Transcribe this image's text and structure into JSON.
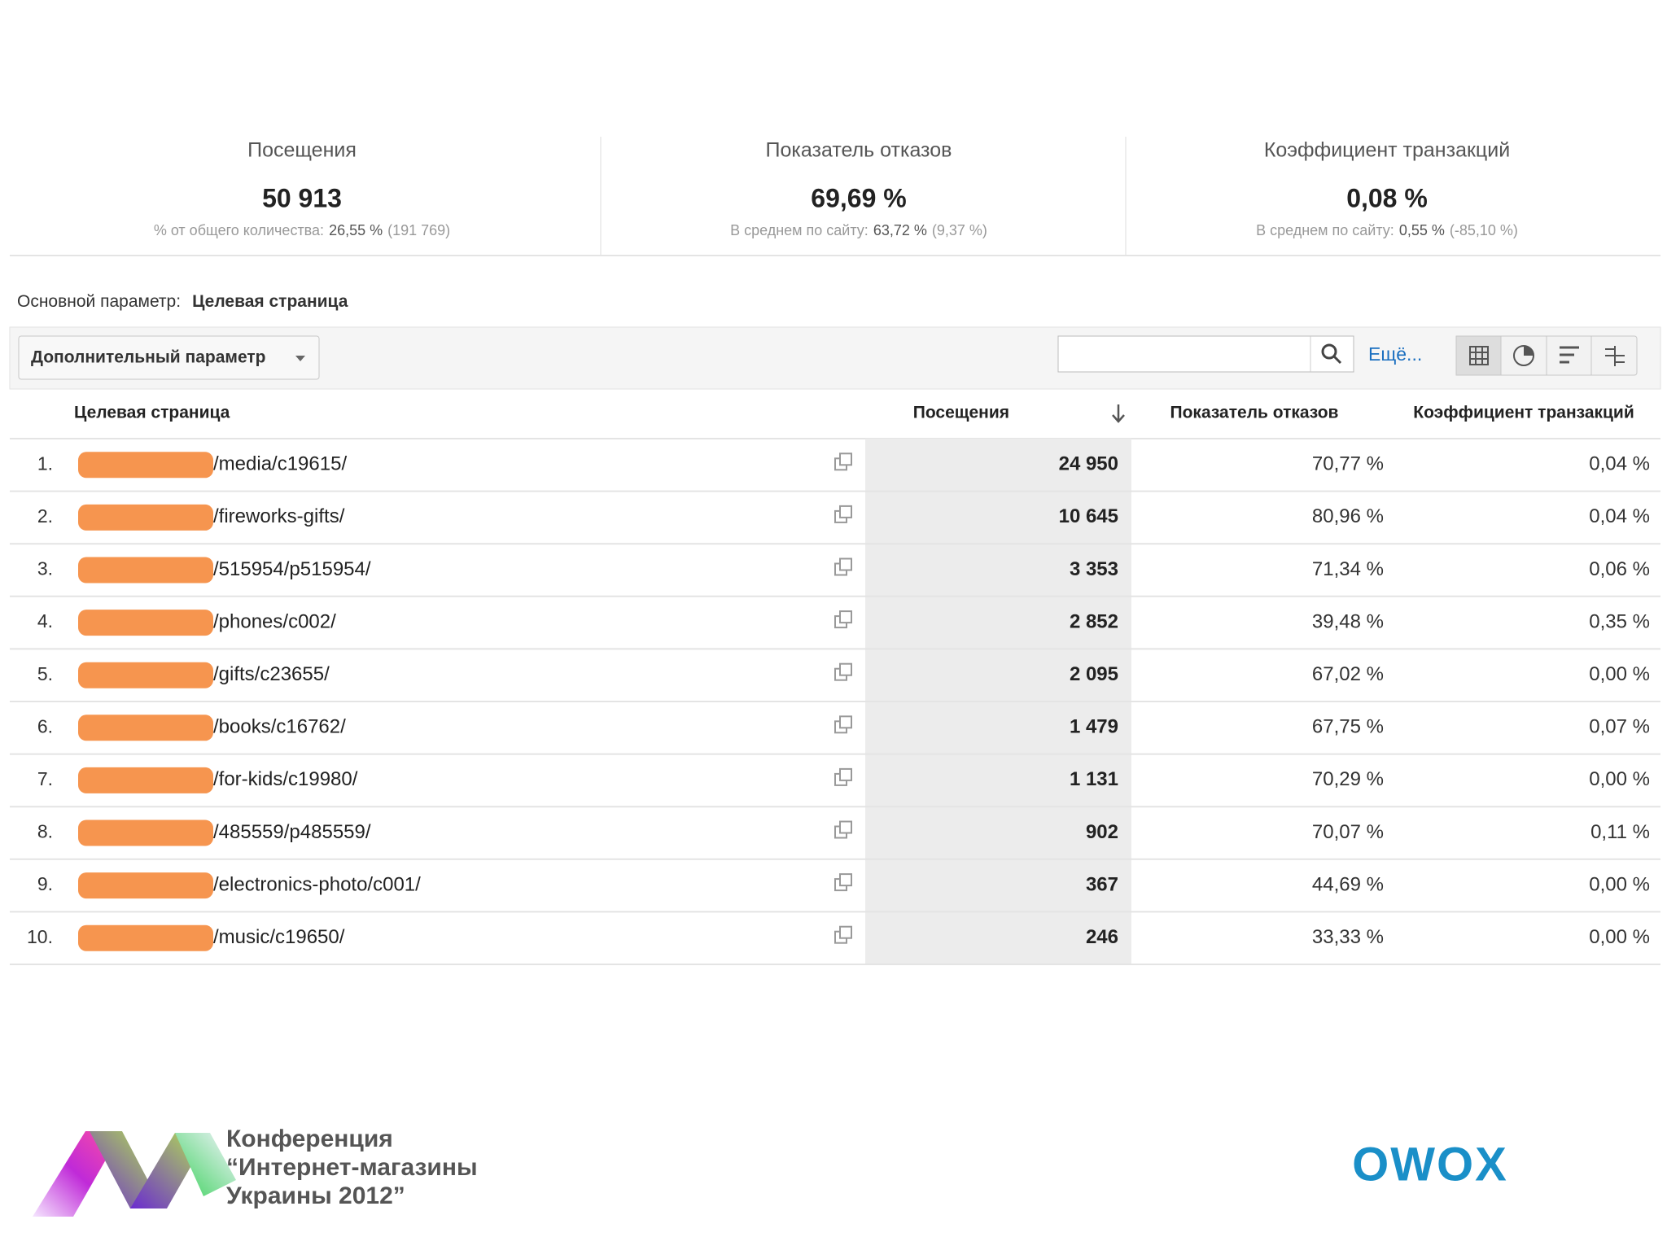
{
  "summary": [
    {
      "label": "Посещения",
      "value": "50 913",
      "sub_label": "% от общего количества:",
      "sub_value": "26,55 %",
      "sub_extra": "(191 769)"
    },
    {
      "label": "Показатель отказов",
      "value": "69,69 %",
      "sub_label": "В среднем по сайту:",
      "sub_value": "63,72 %",
      "sub_extra": "(9,37 %)"
    },
    {
      "label": "Коэффициент транзакций",
      "value": "0,08 %",
      "sub_label": "В среднем по сайту:",
      "sub_value": "0,55 %",
      "sub_extra": "(-85,10 %)"
    }
  ],
  "primary": {
    "label": "Основной параметр:",
    "value": "Целевая страница"
  },
  "secondary_button": "Дополнительный параметр",
  "more_link": "Ещё...",
  "table": {
    "headers": [
      "Целевая страница",
      "Посещения",
      "Показатель отказов",
      "Коэффициент транзакций"
    ],
    "rows": [
      [
        "1.",
        "/media/c19615/",
        "24 950",
        "70,77 %",
        "0,04 %"
      ],
      [
        "2.",
        "/fireworks-gifts/",
        "10 645",
        "80,96 %",
        "0,04 %"
      ],
      [
        "3.",
        "/515954/p515954/",
        "3 353",
        "71,34 %",
        "0,06 %"
      ],
      [
        "4.",
        "/phones/c002/",
        "2 852",
        "39,48 %",
        "0,35 %"
      ],
      [
        "5.",
        "/gifts/c23655/",
        "2 095",
        "67,02 %",
        "0,00 %"
      ],
      [
        "6.",
        "/books/c16762/",
        "1 479",
        "67,75 %",
        "0,07 %"
      ],
      [
        "7.",
        "/for-kids/c19980/",
        "1 131",
        "70,29 %",
        "0,00 %"
      ],
      [
        "8.",
        "/485559/p485559/",
        "902",
        "70,07 %",
        "0,11 %"
      ],
      [
        "9.",
        "/electronics-photo/c001/",
        "367",
        "44,69 %",
        "0,00 %"
      ],
      [
        "10.",
        "/music/c19650/",
        "246",
        "33,33 %",
        "0,00 %"
      ]
    ]
  },
  "footer": {
    "conference": [
      "Конференция",
      "“Интернет-магазины",
      "Украины 2012”"
    ],
    "logo": "OWOX"
  }
}
